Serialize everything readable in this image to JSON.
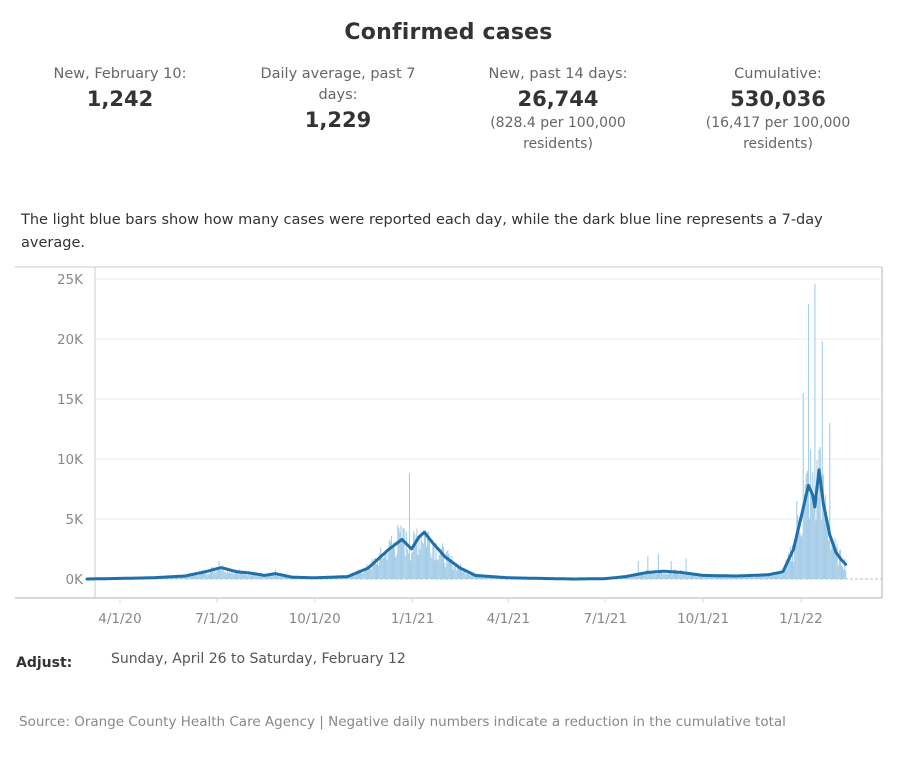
{
  "title": "Confirmed cases",
  "stats": [
    {
      "label": "New, February 10:",
      "value": "1,242",
      "sub": ""
    },
    {
      "label": "Daily average, past 7 days:",
      "value": "1,229",
      "sub": ""
    },
    {
      "label": "New, past 14 days:",
      "value": "26,744",
      "sub": "(828.4 per 100,000 residents)"
    },
    {
      "label": "Cumulative:",
      "value": "530,036",
      "sub": "(16,417 per 100,000 residents)"
    }
  ],
  "description": "The light blue bars show how many cases were reported each day, while the dark blue line represents a 7-day average.",
  "adjust": {
    "label": "Adjust:",
    "value": "Sunday, April 26 to Saturday, February 12"
  },
  "source": "Source: Orange County Health Care Agency | Negative daily numbers indicate a reduction in the cumulative total",
  "colors": {
    "bar": "#a6cde8",
    "line": "#1f6fa8",
    "grid": "#eeeeee",
    "axis": "#cccccc"
  },
  "chart_data": {
    "type": "bar",
    "title": "",
    "xlabel": "",
    "ylabel": "",
    "ylim": [
      0,
      25000
    ],
    "y_ticks": [
      {
        "value": 25000,
        "label": "25K"
      },
      {
        "value": 20000,
        "label": "20K"
      },
      {
        "value": 15000,
        "label": "15K"
      },
      {
        "value": 10000,
        "label": "10K"
      },
      {
        "value": 5000,
        "label": "5K"
      },
      {
        "value": 0,
        "label": "0K"
      }
    ],
    "x_ticks": [
      {
        "date": "2020-04-01",
        "label": "4/1/20"
      },
      {
        "date": "2020-07-01",
        "label": "7/1/20"
      },
      {
        "date": "2020-10-01",
        "label": "10/1/20"
      },
      {
        "date": "2021-01-01",
        "label": "1/1/21"
      },
      {
        "date": "2021-04-01",
        "label": "4/1/21"
      },
      {
        "date": "2021-07-01",
        "label": "7/1/21"
      },
      {
        "date": "2021-10-01",
        "label": "10/1/21"
      },
      {
        "date": "2022-01-01",
        "label": "1/1/22"
      }
    ],
    "x_range": [
      "2020-02-10",
      "2022-03-01"
    ],
    "grid": true,
    "series": [
      {
        "name": "7-day average",
        "kind": "line",
        "points": [
          [
            "2020-03-01",
            0
          ],
          [
            "2020-04-01",
            50
          ],
          [
            "2020-05-01",
            100
          ],
          [
            "2020-06-01",
            250
          ],
          [
            "2020-06-20",
            600
          ],
          [
            "2020-07-05",
            950
          ],
          [
            "2020-07-20",
            600
          ],
          [
            "2020-08-01",
            500
          ],
          [
            "2020-08-15",
            300
          ],
          [
            "2020-08-25",
            450
          ],
          [
            "2020-09-10",
            150
          ],
          [
            "2020-10-01",
            100
          ],
          [
            "2020-11-01",
            200
          ],
          [
            "2020-11-20",
            900
          ],
          [
            "2020-12-10",
            2500
          ],
          [
            "2020-12-22",
            3300
          ],
          [
            "2020-12-31",
            2500
          ],
          [
            "2021-01-07",
            3500
          ],
          [
            "2021-01-12",
            3900
          ],
          [
            "2021-01-20",
            3000
          ],
          [
            "2021-02-01",
            1800
          ],
          [
            "2021-02-15",
            900
          ],
          [
            "2021-03-01",
            300
          ],
          [
            "2021-04-01",
            100
          ],
          [
            "2021-05-01",
            50
          ],
          [
            "2021-06-01",
            0
          ],
          [
            "2021-07-01",
            30
          ],
          [
            "2021-07-20",
            200
          ],
          [
            "2021-08-10",
            550
          ],
          [
            "2021-08-25",
            650
          ],
          [
            "2021-09-10",
            550
          ],
          [
            "2021-10-01",
            300
          ],
          [
            "2021-11-01",
            250
          ],
          [
            "2021-12-01",
            350
          ],
          [
            "2021-12-15",
            600
          ],
          [
            "2021-12-25",
            2500
          ],
          [
            "2022-01-02",
            5500
          ],
          [
            "2022-01-08",
            7800
          ],
          [
            "2022-01-12",
            7000
          ],
          [
            "2022-01-14",
            6000
          ],
          [
            "2022-01-16",
            7600
          ],
          [
            "2022-01-18",
            9100
          ],
          [
            "2022-01-22",
            6300
          ],
          [
            "2022-01-28",
            3700
          ],
          [
            "2022-02-03",
            2200
          ],
          [
            "2022-02-08",
            1600
          ],
          [
            "2022-02-12",
            1229
          ]
        ]
      },
      {
        "name": "Daily cases",
        "kind": "bar",
        "spikes": [
          [
            "2020-07-03",
            1500
          ],
          [
            "2020-08-25",
            800
          ],
          [
            "2020-12-12",
            3600
          ],
          [
            "2020-12-18",
            4500
          ],
          [
            "2020-12-24",
            4200
          ],
          [
            "2020-12-29",
            8800
          ],
          [
            "2021-01-05",
            4200
          ],
          [
            "2021-08-01",
            1500
          ],
          [
            "2021-08-10",
            1900
          ],
          [
            "2021-08-20",
            2100
          ],
          [
            "2021-09-01",
            1500
          ],
          [
            "2021-09-15",
            1700
          ],
          [
            "2021-12-28",
            6500
          ],
          [
            "2022-01-03",
            15500
          ],
          [
            "2022-01-08",
            22900
          ],
          [
            "2022-01-10",
            10800
          ],
          [
            "2022-01-14",
            24600
          ],
          [
            "2022-01-19",
            11000
          ],
          [
            "2022-01-21",
            19800
          ],
          [
            "2022-01-28",
            13000
          ],
          [
            "2022-02-01",
            3000
          ]
        ]
      }
    ],
    "legend": "none"
  }
}
